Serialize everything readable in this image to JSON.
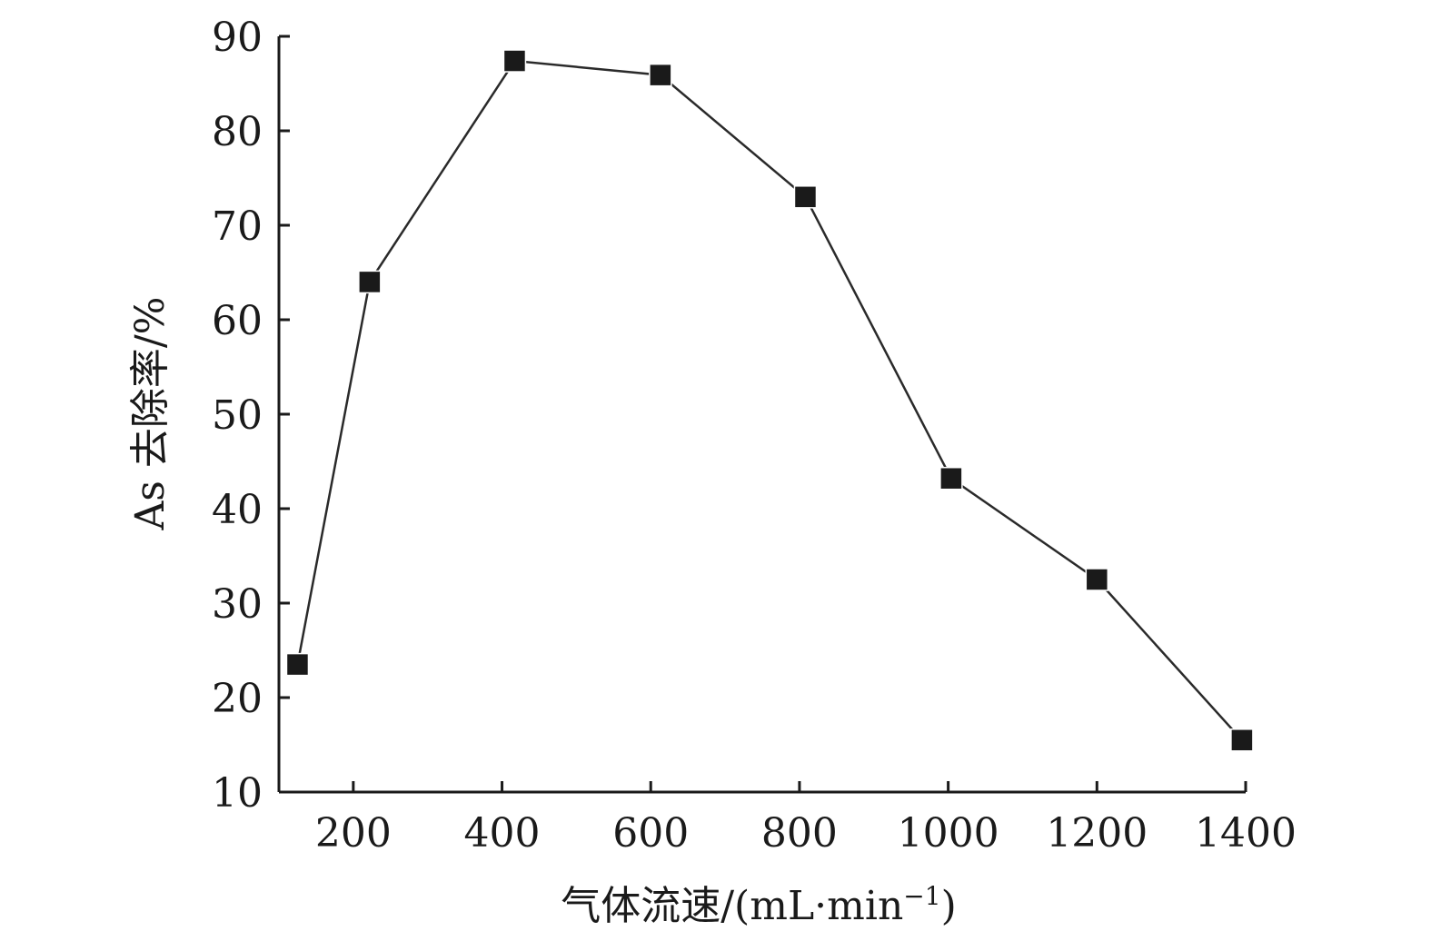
{
  "chart_data": {
    "type": "line",
    "title": "",
    "xlabel_main": "气体流速/(mL·min",
    "xlabel_sup": "−1",
    "xlabel_end": ")",
    "ylabel": "As 去除率/%",
    "xlim": [
      100,
      1400
    ],
    "ylim": [
      10,
      90
    ],
    "x_ticks": [
      200,
      400,
      600,
      800,
      1000,
      1200,
      1400
    ],
    "y_ticks": [
      10,
      20,
      30,
      40,
      50,
      60,
      70,
      80,
      90
    ],
    "grid": false,
    "legend": "none",
    "marker": "square",
    "line_color": "#2a2a2a",
    "marker_color": "#1a1a1a",
    "series": [
      {
        "x": [
          125,
          222,
          417,
          613,
          808,
          1004,
          1200,
          1395
        ],
        "y": [
          23.5,
          64,
          87.4,
          85.9,
          73,
          43.2,
          32.5,
          15.5
        ]
      }
    ]
  }
}
